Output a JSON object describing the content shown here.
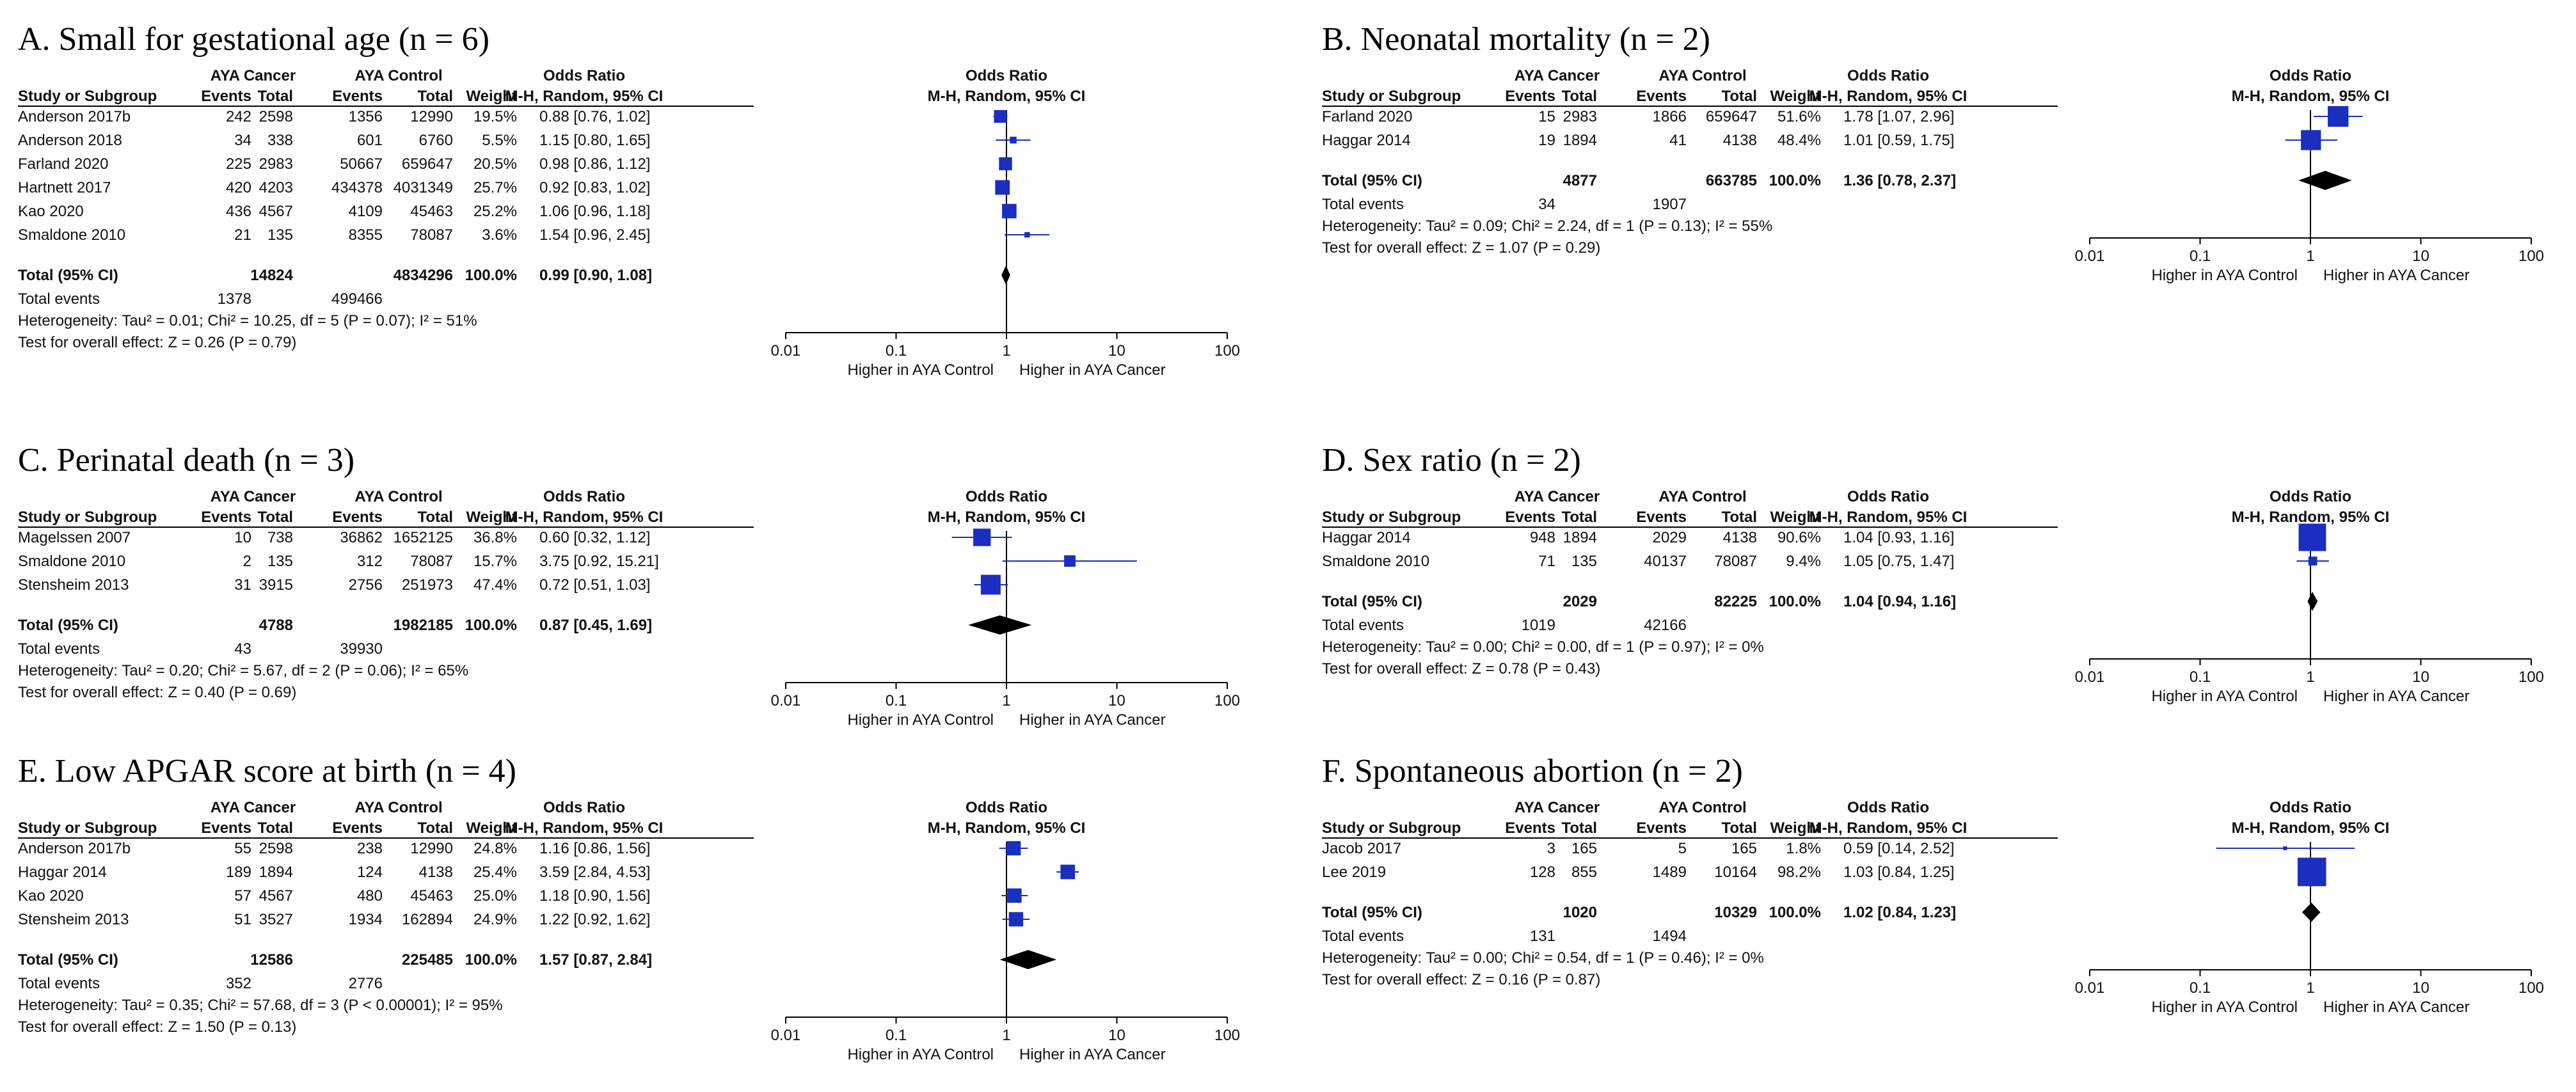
{
  "colors": {
    "square": "#1a2fbf",
    "ci_line": "#1a2fbf",
    "diamond": "#000000",
    "text": "#111111",
    "rule": "#000000"
  },
  "headers": {
    "study": "Study or Subgroup",
    "group_cancer": "AYA Cancer",
    "group_control": "AYA Control",
    "events": "Events",
    "total": "Total",
    "weight": "Weight",
    "or_title": "Odds Ratio",
    "or_method": "M-H, Random, 95% CI",
    "total_row": "Total (95% CI)",
    "total_events": "Total events"
  },
  "chart_data": [
    {
      "type": "forest",
      "title": "A. Small for gestational age (n = 6)",
      "xscale": "log",
      "xlim": [
        0.01,
        100
      ],
      "xticks": [
        "0.01",
        "0.1",
        "1",
        "10",
        "100"
      ],
      "xlabel_left": "Higher in AYA Control",
      "xlabel_right": "Higher in AYA Cancer",
      "studies": [
        {
          "name": "Anderson 2017b",
          "e1": "242",
          "n1": "2598",
          "e2": "1356",
          "n2": "12990",
          "weight": "19.5%",
          "ci_text": "0.88 [0.76, 1.02]",
          "or": 0.88,
          "lo": 0.76,
          "hi": 1.02,
          "w": 19.5
        },
        {
          "name": "Anderson 2018",
          "e1": "34",
          "n1": "338",
          "e2": "601",
          "n2": "6760",
          "weight": "5.5%",
          "ci_text": "1.15 [0.80, 1.65]",
          "or": 1.15,
          "lo": 0.8,
          "hi": 1.65,
          "w": 5.5
        },
        {
          "name": "Farland 2020",
          "e1": "225",
          "n1": "2983",
          "e2": "50667",
          "n2": "659647",
          "weight": "20.5%",
          "ci_text": "0.98 [0.86, 1.12]",
          "or": 0.98,
          "lo": 0.86,
          "hi": 1.12,
          "w": 20.5
        },
        {
          "name": "Hartnett 2017",
          "e1": "420",
          "n1": "4203",
          "e2": "434378",
          "n2": "4031349",
          "weight": "25.7%",
          "ci_text": "0.92 [0.83, 1.02]",
          "or": 0.92,
          "lo": 0.83,
          "hi": 1.02,
          "w": 25.7
        },
        {
          "name": "Kao 2020",
          "e1": "436",
          "n1": "4567",
          "e2": "4109",
          "n2": "45463",
          "weight": "25.2%",
          "ci_text": "1.06 [0.96, 1.18]",
          "or": 1.06,
          "lo": 0.96,
          "hi": 1.18,
          "w": 25.2
        },
        {
          "name": "Smaldone 2010",
          "e1": "21",
          "n1": "135",
          "e2": "8355",
          "n2": "78087",
          "weight": "3.6%",
          "ci_text": "1.54 [0.96, 2.45]",
          "or": 1.54,
          "lo": 0.96,
          "hi": 2.45,
          "w": 3.6
        }
      ],
      "total": {
        "n1": "14824",
        "n2": "4834296",
        "weight": "100.0%",
        "ci_text": "0.99 [0.90, 1.08]",
        "or": 0.99,
        "lo": 0.9,
        "hi": 1.08
      },
      "total_events": {
        "e1": "1378",
        "e2": "499466"
      },
      "heterogeneity": "Heterogeneity: Tau² = 0.01; Chi² = 10.25, df = 5 (P = 0.07); I² = 51%",
      "overall_effect": "Test for overall effect: Z = 0.26 (P = 0.79)"
    },
    {
      "type": "forest",
      "title": "B. Neonatal mortality (n = 2)",
      "xscale": "log",
      "xlim": [
        0.01,
        100
      ],
      "xticks": [
        "0.01",
        "0.1",
        "1",
        "10",
        "100"
      ],
      "xlabel_left": "Higher in AYA Control",
      "xlabel_right": "Higher in AYA Cancer",
      "studies": [
        {
          "name": "Farland 2020",
          "e1": "15",
          "n1": "2983",
          "e2": "1866",
          "n2": "659647",
          "weight": "51.6%",
          "ci_text": "1.78 [1.07, 2.96]",
          "or": 1.78,
          "lo": 1.07,
          "hi": 2.96,
          "w": 51.6
        },
        {
          "name": "Haggar 2014",
          "e1": "19",
          "n1": "1894",
          "e2": "41",
          "n2": "4138",
          "weight": "48.4%",
          "ci_text": "1.01 [0.59, 1.75]",
          "or": 1.01,
          "lo": 0.59,
          "hi": 1.75,
          "w": 48.4
        }
      ],
      "total": {
        "n1": "4877",
        "n2": "663785",
        "weight": "100.0%",
        "ci_text": "1.36 [0.78, 2.37]",
        "or": 1.36,
        "lo": 0.78,
        "hi": 2.37
      },
      "total_events": {
        "e1": "34",
        "e2": "1907"
      },
      "heterogeneity": "Heterogeneity: Tau² = 0.09; Chi² = 2.24, df = 1 (P = 0.13); I² = 55%",
      "overall_effect": "Test for overall effect: Z = 1.07 (P = 0.29)"
    },
    {
      "type": "forest",
      "title": "C. Perinatal death (n = 3)",
      "xscale": "log",
      "xlim": [
        0.01,
        100
      ],
      "xticks": [
        "0.01",
        "0.1",
        "1",
        "10",
        "100"
      ],
      "xlabel_left": "Higher in AYA Control",
      "xlabel_right": "Higher in AYA Cancer",
      "studies": [
        {
          "name": "Magelssen 2007",
          "e1": "10",
          "n1": "738",
          "e2": "36862",
          "n2": "1652125",
          "weight": "36.8%",
          "ci_text": "0.60 [0.32, 1.12]",
          "or": 0.6,
          "lo": 0.32,
          "hi": 1.12,
          "w": 36.8
        },
        {
          "name": "Smaldone 2010",
          "e1": "2",
          "n1": "135",
          "e2": "312",
          "n2": "78087",
          "weight": "15.7%",
          "ci_text": "3.75 [0.92, 15.21]",
          "or": 3.75,
          "lo": 0.92,
          "hi": 15.21,
          "w": 15.7
        },
        {
          "name": "Stensheim 2013",
          "e1": "31",
          "n1": "3915",
          "e2": "2756",
          "n2": "251973",
          "weight": "47.4%",
          "ci_text": "0.72 [0.51, 1.03]",
          "or": 0.72,
          "lo": 0.51,
          "hi": 1.03,
          "w": 47.4
        }
      ],
      "total": {
        "n1": "4788",
        "n2": "1982185",
        "weight": "100.0%",
        "ci_text": "0.87 [0.45, 1.69]",
        "or": 0.87,
        "lo": 0.45,
        "hi": 1.69
      },
      "total_events": {
        "e1": "43",
        "e2": "39930"
      },
      "heterogeneity": "Heterogeneity: Tau² = 0.20; Chi² = 5.67, df = 2 (P = 0.06); I² = 65%",
      "overall_effect": "Test for overall effect: Z = 0.40 (P = 0.69)"
    },
    {
      "type": "forest",
      "title": "D. Sex ratio (n = 2)",
      "xscale": "log",
      "xlim": [
        0.01,
        100
      ],
      "xticks": [
        "0.01",
        "0.1",
        "1",
        "10",
        "100"
      ],
      "xlabel_left": "Higher in AYA Control",
      "xlabel_right": "Higher in AYA Cancer",
      "studies": [
        {
          "name": "Haggar 2014",
          "e1": "948",
          "n1": "1894",
          "e2": "2029",
          "n2": "4138",
          "weight": "90.6%",
          "ci_text": "1.04 [0.93, 1.16]",
          "or": 1.04,
          "lo": 0.93,
          "hi": 1.16,
          "w": 90.6
        },
        {
          "name": "Smaldone 2010",
          "e1": "71",
          "n1": "135",
          "e2": "40137",
          "n2": "78087",
          "weight": "9.4%",
          "ci_text": "1.05 [0.75, 1.47]",
          "or": 1.05,
          "lo": 0.75,
          "hi": 1.47,
          "w": 9.4
        }
      ],
      "total": {
        "n1": "2029",
        "n2": "82225",
        "weight": "100.0%",
        "ci_text": "1.04 [0.94, 1.16]",
        "or": 1.04,
        "lo": 0.94,
        "hi": 1.16
      },
      "total_events": {
        "e1": "1019",
        "e2": "42166"
      },
      "heterogeneity": "Heterogeneity: Tau² = 0.00; Chi² = 0.00, df = 1 (P = 0.97); I² = 0%",
      "overall_effect": "Test for overall effect: Z = 0.78 (P = 0.43)"
    },
    {
      "type": "forest",
      "title": "E. Low APGAR score at birth (n = 4)",
      "xscale": "log",
      "xlim": [
        0.01,
        100
      ],
      "xticks": [
        "0.01",
        "0.1",
        "1",
        "10",
        "100"
      ],
      "xlabel_left": "Higher in AYA Control",
      "xlabel_right": "Higher in AYA Cancer",
      "studies": [
        {
          "name": "Anderson 2017b",
          "e1": "55",
          "n1": "2598",
          "e2": "238",
          "n2": "12990",
          "weight": "24.8%",
          "ci_text": "1.16 [0.86, 1.56]",
          "or": 1.16,
          "lo": 0.86,
          "hi": 1.56,
          "w": 24.8
        },
        {
          "name": "Haggar 2014",
          "e1": "189",
          "n1": "1894",
          "e2": "124",
          "n2": "4138",
          "weight": "25.4%",
          "ci_text": "3.59 [2.84, 4.53]",
          "or": 3.59,
          "lo": 2.84,
          "hi": 4.53,
          "w": 25.4
        },
        {
          "name": "Kao 2020",
          "e1": "57",
          "n1": "4567",
          "e2": "480",
          "n2": "45463",
          "weight": "25.0%",
          "ci_text": "1.18 [0.90, 1.56]",
          "or": 1.18,
          "lo": 0.9,
          "hi": 1.56,
          "w": 25.0
        },
        {
          "name": "Stensheim 2013",
          "e1": "51",
          "n1": "3527",
          "e2": "1934",
          "n2": "162894",
          "weight": "24.9%",
          "ci_text": "1.22 [0.92, 1.62]",
          "or": 1.22,
          "lo": 0.92,
          "hi": 1.62,
          "w": 24.9
        }
      ],
      "total": {
        "n1": "12586",
        "n2": "225485",
        "weight": "100.0%",
        "ci_text": "1.57 [0.87, 2.84]",
        "or": 1.57,
        "lo": 0.87,
        "hi": 2.84
      },
      "total_events": {
        "e1": "352",
        "e2": "2776"
      },
      "heterogeneity": "Heterogeneity: Tau² = 0.35; Chi² = 57.68, df = 3 (P < 0.00001); I² = 95%",
      "overall_effect": "Test for overall effect: Z = 1.50 (P = 0.13)"
    },
    {
      "type": "forest",
      "title": "F. Spontaneous abortion (n = 2)",
      "xscale": "log",
      "xlim": [
        0.01,
        100
      ],
      "xticks": [
        "0.01",
        "0.1",
        "1",
        "10",
        "100"
      ],
      "xlabel_left": "Higher in AYA Control",
      "xlabel_right": "Higher in AYA Cancer",
      "studies": [
        {
          "name": "Jacob 2017",
          "e1": "3",
          "n1": "165",
          "e2": "5",
          "n2": "165",
          "weight": "1.8%",
          "ci_text": "0.59 [0.14, 2.52]",
          "or": 0.59,
          "lo": 0.14,
          "hi": 2.52,
          "w": 1.8
        },
        {
          "name": "Lee 2019",
          "e1": "128",
          "n1": "855",
          "e2": "1489",
          "n2": "10164",
          "weight": "98.2%",
          "ci_text": "1.03 [0.84, 1.25]",
          "or": 1.03,
          "lo": 0.84,
          "hi": 1.25,
          "w": 98.2
        }
      ],
      "total": {
        "n1": "1020",
        "n2": "10329",
        "weight": "100.0%",
        "ci_text": "1.02 [0.84, 1.23]",
        "or": 1.02,
        "lo": 0.84,
        "hi": 1.23
      },
      "total_events": {
        "e1": "131",
        "e2": "1494"
      },
      "heterogeneity": "Heterogeneity: Tau² = 0.00; Chi² = 0.54, df = 1 (P = 0.46); I² = 0%",
      "overall_effect": "Test for overall effect: Z = 0.16 (P = 0.87)"
    }
  ]
}
